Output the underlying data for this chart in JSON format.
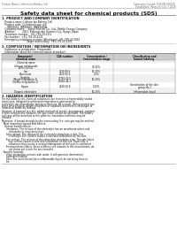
{
  "header_left": "Product Name: Lithium Ion Battery Cell",
  "header_right_line1": "Substance Control: SDS-EN-000019",
  "header_right_line2": "Established / Revision: Dec.7.2018",
  "title": "Safety data sheet for chemical products (SDS)",
  "section1_title": "1. PRODUCT AND COMPANY IDENTIFICATION",
  "section1_lines": [
    "  · Product name: Lithium Ion Battery Cell",
    "  · Product code: Cylindrical-type cell",
    "       INR18650, INR18650, INR18650A",
    "  · Company name:    Sanyo Electric Co., Ltd., Mobile Energy Company",
    "  · Address:         2001, Kamosaridai, Sumoto-City, Hyogo, Japan",
    "  · Telephone number:  +81-799-20-4111",
    "  · Fax number:  +81-799-20-4121",
    "  · Emergency telephone number (Weekdays) +81-799-20-3842",
    "                                (Night and holiday) +81-799-20-4101"
  ],
  "section2_title": "2. COMPOSITION / INFORMATION ON INGREDIENTS",
  "section2_line1": "  · Substance or preparation: Preparation",
  "section2_line2": "  · Information about the chemical nature of product:",
  "th0": "Component/chemical name",
  "th1": "CAS number",
  "th2": "Concentration /\nConcentration range",
  "th3": "Classification and\nhazard labeling",
  "tr_names": [
    "Chemical name",
    "Lithium cobalt oxide\n(LiMn-Co/O2)",
    "Iron",
    "Aluminium",
    "Graphite\n(Metal in graphite-1)\n(Gr/Mix on graphite-1)",
    "Copper",
    "Organic electrolyte"
  ],
  "tr_cas": [
    "",
    "",
    "7439-89-6",
    "7429-90-5",
    "77782-42-5\n17440-44-1",
    "7440-50-8",
    ""
  ],
  "tr_conc": [
    "",
    "30-50%",
    "15-25%",
    "2-5%",
    "10-20%",
    "5-15%",
    "10-20%"
  ],
  "tr_class": [
    "",
    "",
    "",
    "",
    "",
    "Sensitization of the skin\ngroup No.2",
    "Inflammable liquid"
  ],
  "section3_title": "3. HAZARDS IDENTIFICATION",
  "s3_p1": "For this battery cell, chemical substances are stored in a hermetically sealed metal case, designed to withstand temperatures generated by electrolyte-ion-intercalation during normal use. As a result, during normal use, there is no physical danger of ignition or explosion and there is no danger of hazardous materials leakage.",
  "s3_p2": "However, if exposed to a fire, added mechanical shocks, decomposed, ambient electric without any measure, the gas inside cannot be operated. The battery cell case will be breached or fire patterns. hazardous materials may be released.",
  "s3_p3": "Moreover, if heated strongly by the surrounding fire, soot gas may be emitted.",
  "s3_b1": "· Most important hazard and effects:",
  "s3_human": "Human health effects:",
  "s3_inh": "Inhalation: The release of the electrolyte has an anesthesia action and stimulates in respiratory tract.",
  "s3_skin": "Skin contact: The release of the electrolyte stimulates a skin. The electrolyte skin contact causes a sore and stimulation on the skin.",
  "s3_eye": "Eye contact: The release of the electrolyte stimulates eyes. The electrolyte eye contact causes a sore and stimulation on the eye. Especially, a substance that causes a strong inflammation of the eyes is contained.",
  "s3_env": "Environmental effects: Since a battery cell remains in the environment, do not throw out it into the environment.",
  "s3_b2": "· Specific hazards:",
  "s3_sp1": "If the electrolyte contacts with water, it will generate detrimental hydrogen fluoride.",
  "s3_sp2": "Since the used electrolyte is inflammable liquid, do not bring close to fire.",
  "bg": "#ffffff",
  "fg": "#111111",
  "gray": "#888888",
  "table_header_bg": "#cccccc",
  "table_alt_bg": "#f0f0f0"
}
